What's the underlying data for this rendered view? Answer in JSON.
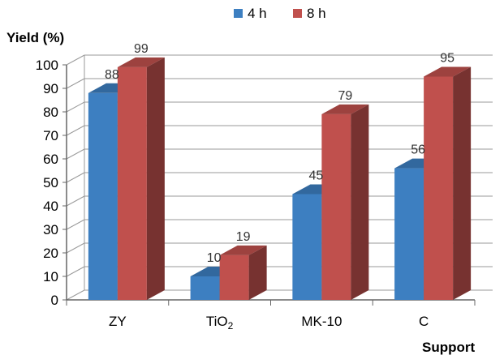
{
  "chart_data": {
    "type": "bar",
    "categories": [
      "ZY",
      "TiO",
      "MK-10",
      "C"
    ],
    "category_subscripts": [
      "",
      "2",
      "",
      ""
    ],
    "series": [
      {
        "name": "4 h",
        "values": [
          88,
          10,
          45,
          56
        ],
        "color": "#3d7fc1"
      },
      {
        "name": "8 h",
        "values": [
          99,
          19,
          79,
          95
        ],
        "color": "#c0504d"
      }
    ],
    "ylabel": "Yield (%)",
    "xlabel": "Support",
    "ylim": [
      0,
      100
    ],
    "yticks": [
      0,
      10,
      20,
      30,
      40,
      50,
      60,
      70,
      80,
      90,
      100
    ],
    "grid": true,
    "legend_position": "top"
  }
}
